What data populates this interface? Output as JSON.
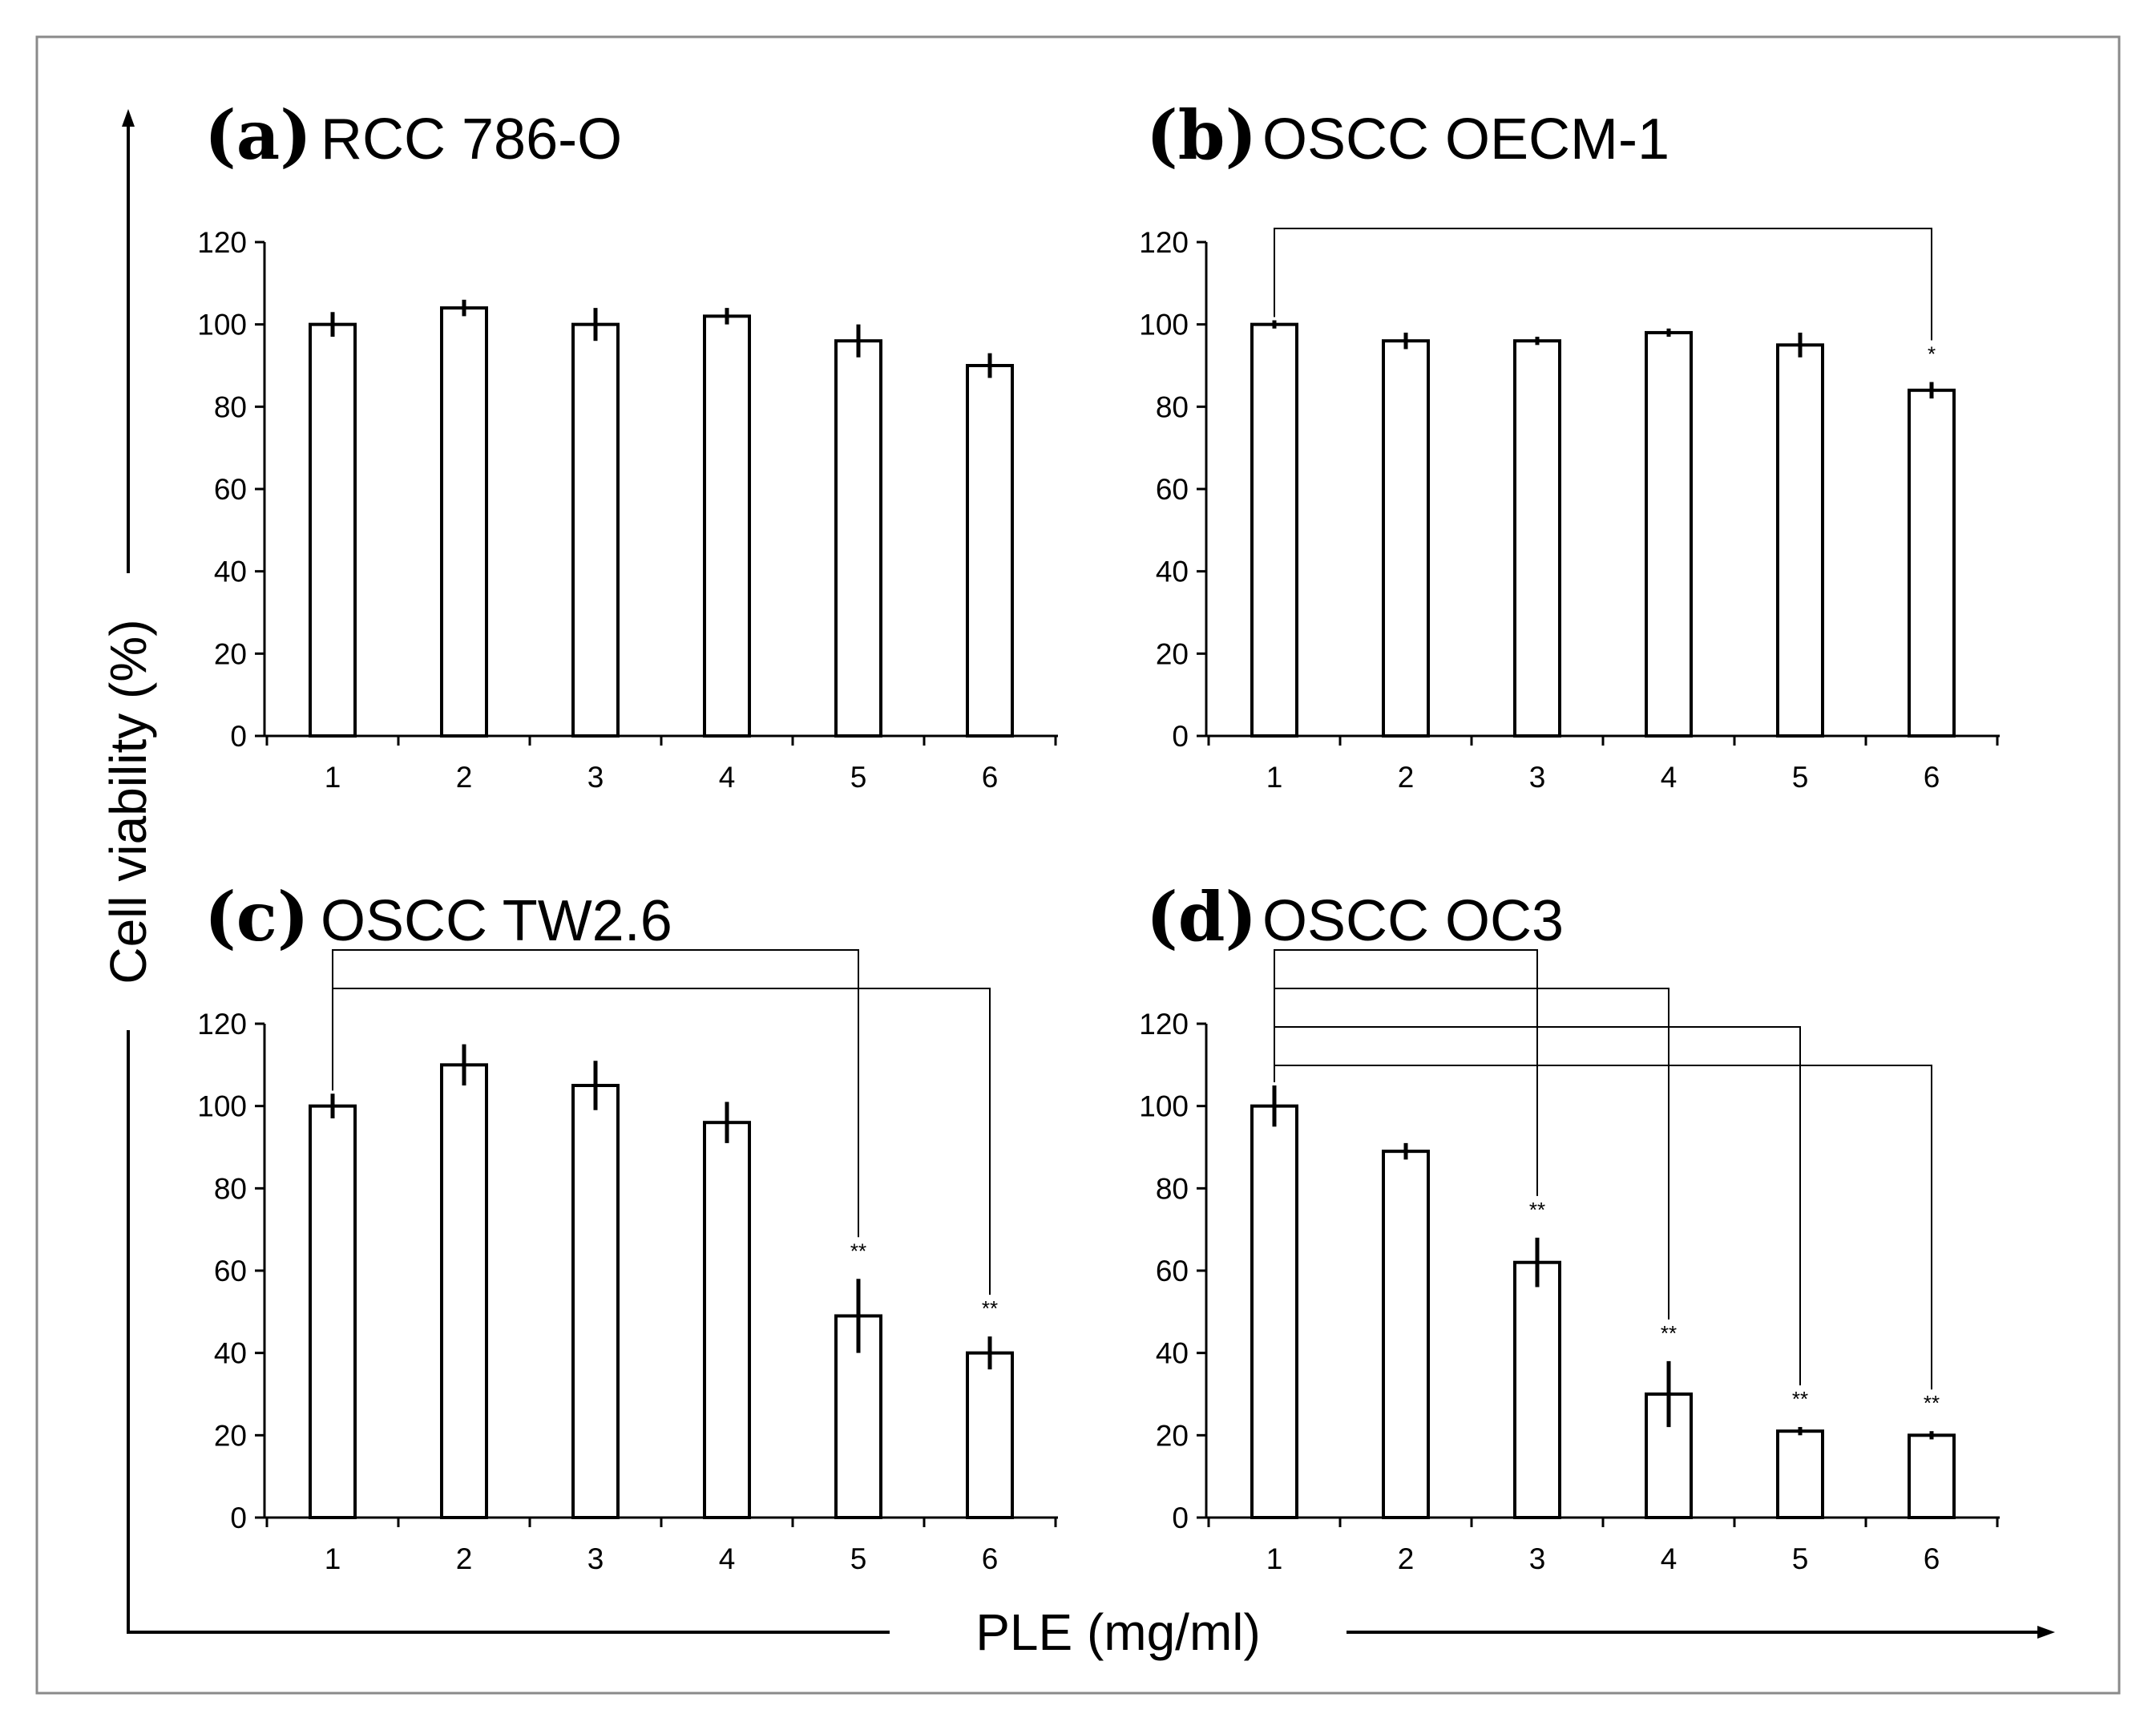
{
  "figure": {
    "ylabel": "Cell viability (%)",
    "xlabel": "PLE (mg/ml)"
  },
  "chart_data": [
    {
      "type": "bar",
      "panel": "(a)",
      "title": "RCC 786-O",
      "categories": [
        "1",
        "2",
        "3",
        "4",
        "5",
        "6"
      ],
      "values": [
        100,
        104,
        100,
        102,
        96,
        90
      ],
      "errors": [
        3,
        2,
        4,
        2,
        4,
        3
      ],
      "ylim": [
        0,
        120
      ],
      "yticks": [
        0,
        20,
        40,
        60,
        80,
        100,
        120
      ],
      "significance": []
    },
    {
      "type": "bar",
      "panel": "(b)",
      "title": "OSCC OECM-1",
      "categories": [
        "1",
        "2",
        "3",
        "4",
        "5",
        "6"
      ],
      "values": [
        100,
        96,
        96,
        98,
        95,
        84
      ],
      "errors": [
        1,
        2,
        1,
        1,
        3,
        2
      ],
      "ylim": [
        0,
        120
      ],
      "yticks": [
        0,
        20,
        40,
        60,
        80,
        100,
        120
      ],
      "significance": [
        {
          "from": 1,
          "to": 6,
          "label": "*"
        }
      ]
    },
    {
      "type": "bar",
      "panel": "(c)",
      "title": "OSCC TW2.6",
      "categories": [
        "1",
        "2",
        "3",
        "4",
        "5",
        "6"
      ],
      "values": [
        100,
        110,
        105,
        96,
        49,
        40
      ],
      "errors": [
        3,
        5,
        6,
        5,
        9,
        4
      ],
      "ylim": [
        0,
        120
      ],
      "yticks": [
        0,
        20,
        40,
        60,
        80,
        100,
        120
      ],
      "significance": [
        {
          "from": 1,
          "to": 5,
          "label": "**"
        },
        {
          "from": 1,
          "to": 6,
          "label": "**"
        }
      ]
    },
    {
      "type": "bar",
      "panel": "(d)",
      "title": "OSCC OC3",
      "categories": [
        "1",
        "2",
        "3",
        "4",
        "5",
        "6"
      ],
      "values": [
        100,
        89,
        62,
        30,
        21,
        20
      ],
      "errors": [
        5,
        2,
        6,
        8,
        1,
        1
      ],
      "ylim": [
        0,
        120
      ],
      "yticks": [
        0,
        20,
        40,
        60,
        80,
        100,
        120
      ],
      "significance": [
        {
          "from": 1,
          "to": 3,
          "label": "**"
        },
        {
          "from": 1,
          "to": 4,
          "label": "**"
        },
        {
          "from": 1,
          "to": 5,
          "label": "**"
        },
        {
          "from": 1,
          "to": 6,
          "label": "**"
        }
      ]
    }
  ]
}
